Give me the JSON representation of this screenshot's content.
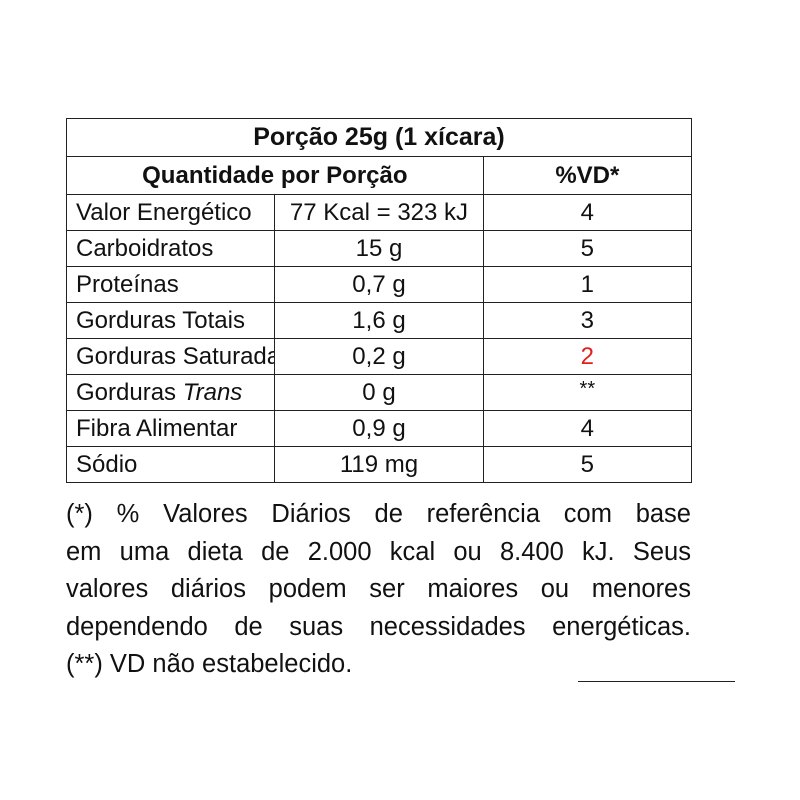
{
  "table": {
    "title": "Porção 25g (1 xícara)",
    "header": {
      "quantity": "Quantidade por Porção",
      "dv": "%VD*"
    },
    "rows": [
      {
        "name": "Valor Energético",
        "amount": "77 Kcal = 323 kJ",
        "dv": "4"
      },
      {
        "name": "Carboidratos",
        "amount": "15 g",
        "dv": "5"
      },
      {
        "name": "Proteínas",
        "amount": "0,7 g",
        "dv": "1"
      },
      {
        "name": "Gorduras Totais",
        "amount": "1,6 g",
        "dv": "3"
      },
      {
        "name": "Gorduras Saturadas",
        "amount": "0,2 g",
        "dv": "2",
        "dv_color": "#e0201c"
      },
      {
        "name": "Gorduras ",
        "name_italic": "Trans",
        "amount": "0 g",
        "dv": "**"
      },
      {
        "name": "Fibra Alimentar",
        "amount": "0,9 g",
        "dv": "4"
      },
      {
        "name": "Sódio",
        "amount": "119 mg",
        "dv": "5"
      }
    ]
  },
  "footnote": {
    "lines": [
      "(*) % Valores Diários de referência com base",
      "em uma dieta de 2.000 kcal ou 8.400 kJ. Seus",
      "valores diários podem ser maiores ou menores",
      "dependendo de suas necessidades energéticas.",
      "(**) VD não estabelecido."
    ]
  }
}
